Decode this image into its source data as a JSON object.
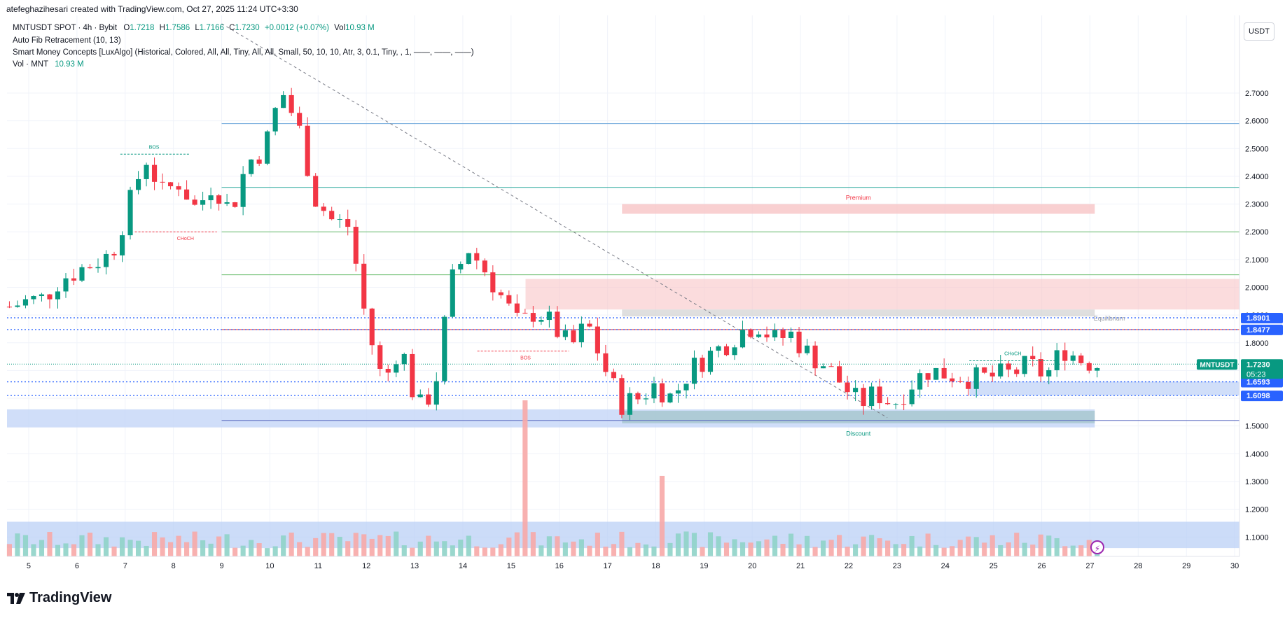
{
  "header": {
    "created_line": "atefeghazihesari created with TradingView.com, Oct 27, 2025 11:24 UTC+3:30",
    "symbol_line": {
      "symbol": "MNTUSDT SPOT · 4h · Bybit",
      "open_label": "O",
      "open": "1.7218",
      "high_label": "H",
      "high": "1.7586",
      "low_label": "L",
      "low": "1.7166",
      "close_label": "C",
      "close": "1.7230",
      "change": "+0.0012 (+0.07%)",
      "vol_label": "Vol",
      "vol": "10.93 M"
    },
    "indicator_1": "Auto Fib Retracement (10, 13)",
    "indicator_2": "Smart Money Concepts [LuxAlgo] (Historical, Colored, All, All, Tiny, All, All, Small, 50, 10, 10, Atr, 3, 0.1, Tiny, , 1, ——, ——, ——)",
    "volume_label": "Vol · MNT",
    "volume_value": "10.93 M"
  },
  "axis": {
    "currency": "USDT"
  },
  "branding": {
    "logo_text": "TradingView"
  },
  "colors": {
    "up": "#089981",
    "down": "#f23645",
    "up_vol": "#8fd3c8",
    "down_vol": "#f7a9a7",
    "premium_zone": "#f8c4c6",
    "discount_zone": "#c4d6f7",
    "fib_blue": "#6fa8dc",
    "fib_green": "#4caf50",
    "fib_red": "#e53935"
  },
  "chart_data": {
    "type": "candlestick",
    "title": "MNTUSDT SPOT · 4h · Bybit",
    "ylabel": "USDT",
    "ylim": [
      1.03,
      2.98
    ],
    "x_start_day": 4.55,
    "x_end_day": 30.1,
    "x_tick_labels": [
      "5",
      "6",
      "7",
      "8",
      "9",
      "10",
      "11",
      "12",
      "13",
      "14",
      "15",
      "16",
      "17",
      "18",
      "19",
      "20",
      "21",
      "22",
      "23",
      "24",
      "25",
      "26",
      "27",
      "28",
      "29",
      "30"
    ],
    "y_ticks": [
      1.1,
      1.2,
      1.3,
      1.4,
      1.5,
      1.6,
      1.7,
      1.8,
      1.9,
      2.0,
      2.1,
      2.2,
      2.3,
      2.4,
      2.5,
      2.6,
      2.7
    ],
    "y_tick_labels": [
      "1.1000",
      "1.2000",
      "1.3000",
      "1.4000",
      "1.5000",
      "1.6000",
      "1.7000",
      "1.8000",
      "1.9000",
      "2.0000",
      "2.1000",
      "2.2000",
      "2.3000",
      "2.4000",
      "2.5000",
      "2.6000",
      "2.7000"
    ],
    "close_path": [
      1.93,
      1.95,
      1.96,
      2.03,
      2.06,
      2.09,
      2.12,
      2.29,
      2.47,
      2.34,
      2.38,
      2.28,
      2.38,
      2.27,
      2.45,
      2.5,
      2.71,
      2.58,
      2.32,
      2.24,
      2.22,
      1.87,
      1.65,
      1.8,
      1.56,
      1.63,
      2.02,
      2.14,
      2.06,
      1.96,
      1.86,
      1.92,
      1.86,
      1.78,
      1.87,
      1.71,
      1.58,
      1.6,
      1.65,
      1.6,
      1.7,
      1.75,
      1.79,
      1.84,
      1.87,
      1.81,
      1.83,
      1.76,
      1.72,
      1.65,
      1.58,
      1.62,
      1.58,
      1.65,
      1.7,
      1.69,
      1.68,
      1.67,
      1.68,
      1.69,
      1.72,
      1.68,
      1.78,
      1.74,
      1.723
    ],
    "price_labels": [
      {
        "value": 1.8901,
        "text": "1.8901",
        "color": "#2962ff"
      },
      {
        "value": 1.8477,
        "text": "1.8477",
        "color": "#2962ff"
      },
      {
        "value": 1.6593,
        "text": "1.6593",
        "color": "#2962ff"
      },
      {
        "value": 1.6098,
        "text": "1.6098",
        "color": "#2962ff"
      },
      {
        "value": 1.723,
        "text": "1.7230",
        "color": "#089981"
      }
    ],
    "last_price_symbol": "MNTUSDT",
    "countdown": "05:23",
    "horizontal_levels": [
      {
        "value": 2.59,
        "color": "#6fa8dc"
      },
      {
        "value": 2.36,
        "color": "#26a69a"
      },
      {
        "value": 2.2,
        "color": "#66bb6a"
      },
      {
        "value": 2.045,
        "color": "#66bb6a"
      },
      {
        "value": 1.8477,
        "color": "#e53935"
      },
      {
        "value": 1.52,
        "color": "#5c6bc0"
      }
    ],
    "zones": {
      "premium_label": "Premium",
      "equilibrium_label": "Equilibrium",
      "discount_label": "Discount"
    },
    "structure_labels": [
      "BOS",
      "CHoCH",
      "BOS",
      "CHoCH"
    ]
  }
}
